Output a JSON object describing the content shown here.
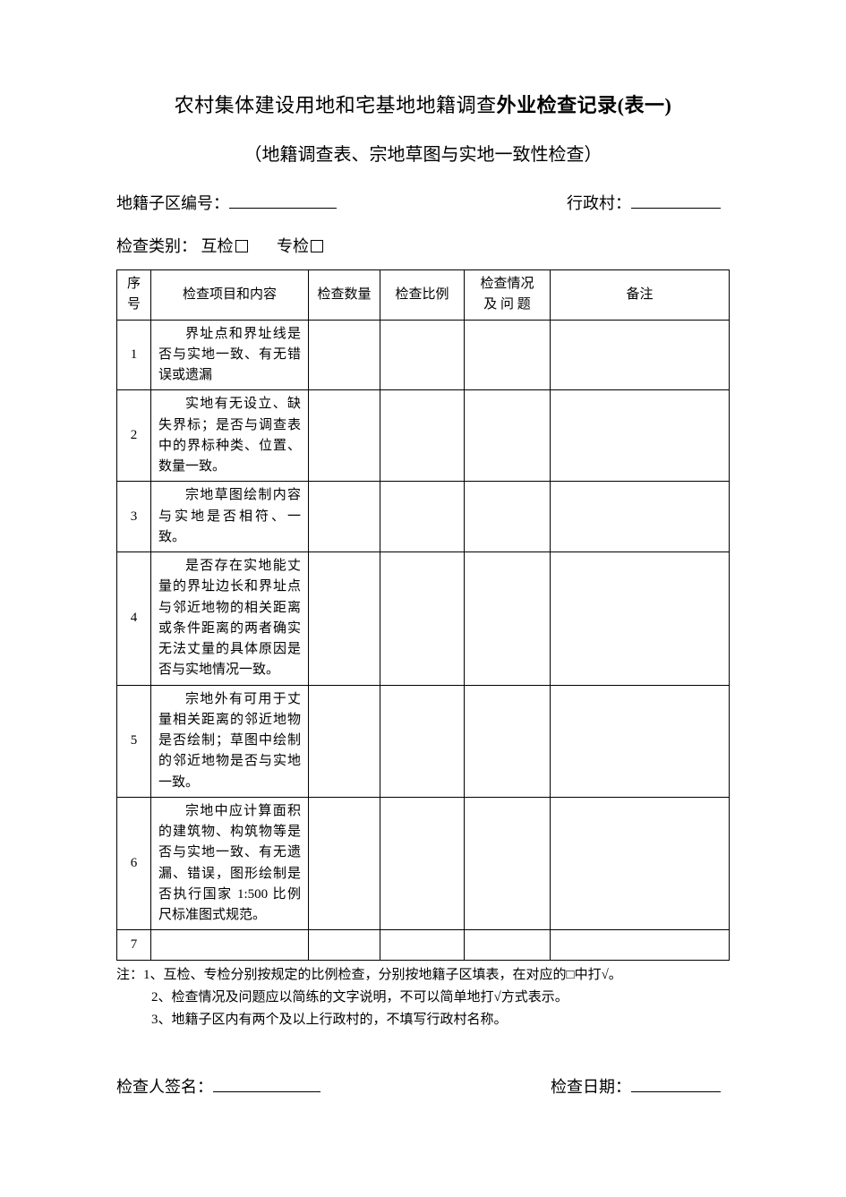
{
  "title_prefix": "农村集体建设用地和宅基地地籍调查",
  "title_bold": "外业检查记录(表一)",
  "subtitle": "（地籍调查表、宗地草图与实地一致性检查）",
  "form": {
    "subarea_label": "地籍子区编号：",
    "village_label": "行政村：",
    "check_type_label": "检查类别：",
    "mutual_label": "互检",
    "special_label": "专检"
  },
  "table": {
    "headers": {
      "seq": "序号",
      "item": "检查项目和内容",
      "qty": "检查数量",
      "ratio": "检查比例",
      "issue_l1": "检查情况",
      "issue_l2": "及 问 题",
      "remark": "备注"
    },
    "rows": [
      {
        "seq": "1",
        "item": "界址点和界址线是否与实地一致、有无错误或遗漏"
      },
      {
        "seq": "2",
        "item": "实地有无设立、缺失界标；是否与调查表中的界标种类、位置、数量一致。"
      },
      {
        "seq": "3",
        "item": "宗地草图绘制内容与实地是否相符、一致。"
      },
      {
        "seq": "4",
        "item": "是否存在实地能丈量的界址边长和界址点与邻近地物的相关距离或条件距离的两者确实无法丈量的具体原因是否与实地情况一致。"
      },
      {
        "seq": "5",
        "item": "宗地外有可用于丈量相关距离的邻近地物是否绘制；草图中绘制的邻近地物是否与实地一致。"
      },
      {
        "seq": "6",
        "item": "宗地中应计算面积的建筑物、构筑物等是否与实地一致、有无遗漏、错误，图形绘制是否执行国家 1:500 比例尺标准图式规范。"
      },
      {
        "seq": "7",
        "item": ""
      }
    ]
  },
  "notes": {
    "prefix": "注：",
    "n1": "1、互检、专检分别按规定的比例检查，分别按地籍子区填表，在对应的□中打√。",
    "n2": "2、检查情况及问题应以简练的文字说明，不可以简单地打√方式表示。",
    "n3": "3、地籍子区内有两个及以上行政村的，不填写行政村名称。"
  },
  "signature": {
    "signer_label": "检查人签名：",
    "date_label": "检查日期："
  }
}
